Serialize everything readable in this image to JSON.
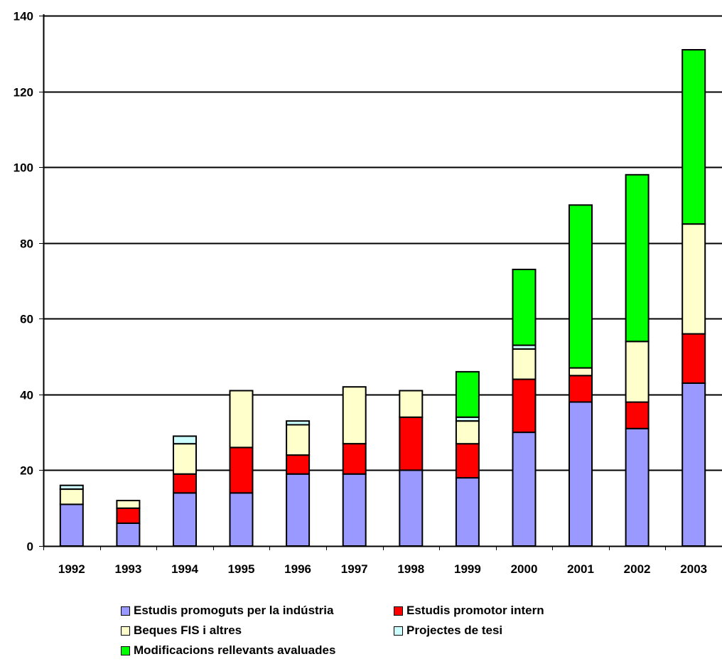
{
  "chart_data": {
    "type": "bar",
    "stacked": true,
    "categories": [
      "1992",
      "1993",
      "1994",
      "1995",
      "1996",
      "1997",
      "1998",
      "1999",
      "2000",
      "2001",
      "2002",
      "2003"
    ],
    "series": [
      {
        "name": "Estudis promoguts per la indústria",
        "color": "#9999ff",
        "values": [
          11,
          6,
          14,
          14,
          19,
          19,
          20,
          18,
          30,
          38,
          31,
          43
        ]
      },
      {
        "name": "Estudis promotor intern",
        "color": "#ff0000",
        "values": [
          0,
          4,
          5,
          12,
          5,
          8,
          14,
          9,
          14,
          7,
          7,
          13
        ]
      },
      {
        "name": "Beques FIS i altres",
        "color": "#ffffcc",
        "values": [
          4,
          2,
          8,
          15,
          8,
          15,
          7,
          6,
          8,
          2,
          16,
          29
        ]
      },
      {
        "name": "Projectes de tesi",
        "color": "#ccffff",
        "values": [
          1,
          0,
          2,
          0,
          1,
          0,
          0,
          1,
          1,
          0,
          0,
          0
        ]
      },
      {
        "name": "Modificacions rellevants avaluades",
        "color": "#00ff00",
        "values": [
          0,
          0,
          0,
          0,
          0,
          0,
          0,
          12,
          20,
          43,
          44,
          46
        ]
      }
    ],
    "yticks": [
      "0",
      "20",
      "40",
      "60",
      "80",
      "100",
      "120",
      "140"
    ],
    "ylim": [
      0,
      140
    ],
    "grid": true,
    "legend_position": "bottom"
  }
}
